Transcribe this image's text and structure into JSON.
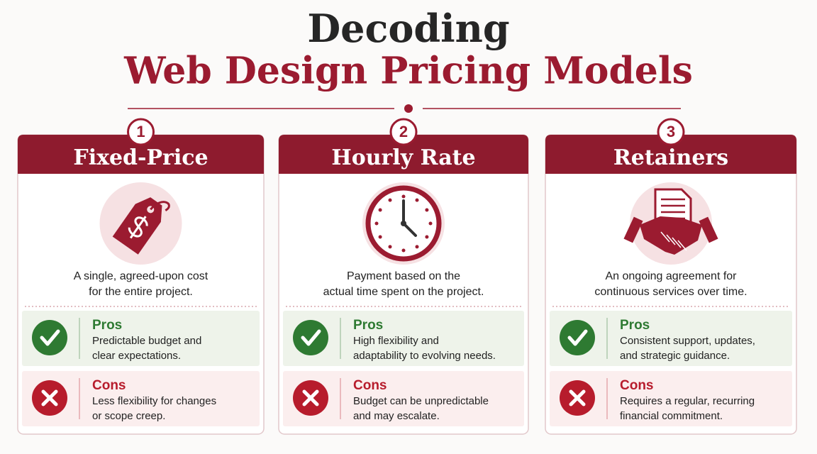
{
  "title": {
    "line1": "Decoding",
    "line2": "Web Design Pricing Models"
  },
  "cards": [
    {
      "number": "1",
      "title": "Fixed-Price",
      "description": [
        "A single, agreed-upon cost",
        "for the entire project."
      ],
      "pros": {
        "label": "Pros",
        "text": [
          "Predictable budget and",
          "clear expectations."
        ]
      },
      "cons": {
        "label": "Cons",
        "text": [
          "Less flexibility for changes",
          "or scope creep."
        ]
      }
    },
    {
      "number": "2",
      "title": "Hourly Rate",
      "description": [
        "Payment based on the",
        "actual time spent on the project."
      ],
      "pros": {
        "label": "Pros",
        "text": [
          "High flexibility and",
          "adaptability to evolving needs."
        ]
      },
      "cons": {
        "label": "Cons",
        "text": [
          "Budget can be unpredictable",
          "and may escalate."
        ]
      }
    },
    {
      "number": "3",
      "title": "Retainers",
      "description": [
        "An ongoing agreement for",
        "continuous services over time."
      ],
      "pros": {
        "label": "Pros",
        "text": [
          "Consistent support, updates,",
          "and strategic guidance."
        ]
      },
      "cons": {
        "label": "Cons",
        "text": [
          "Requires a regular, recurring",
          "financial commitment."
        ]
      }
    }
  ]
}
